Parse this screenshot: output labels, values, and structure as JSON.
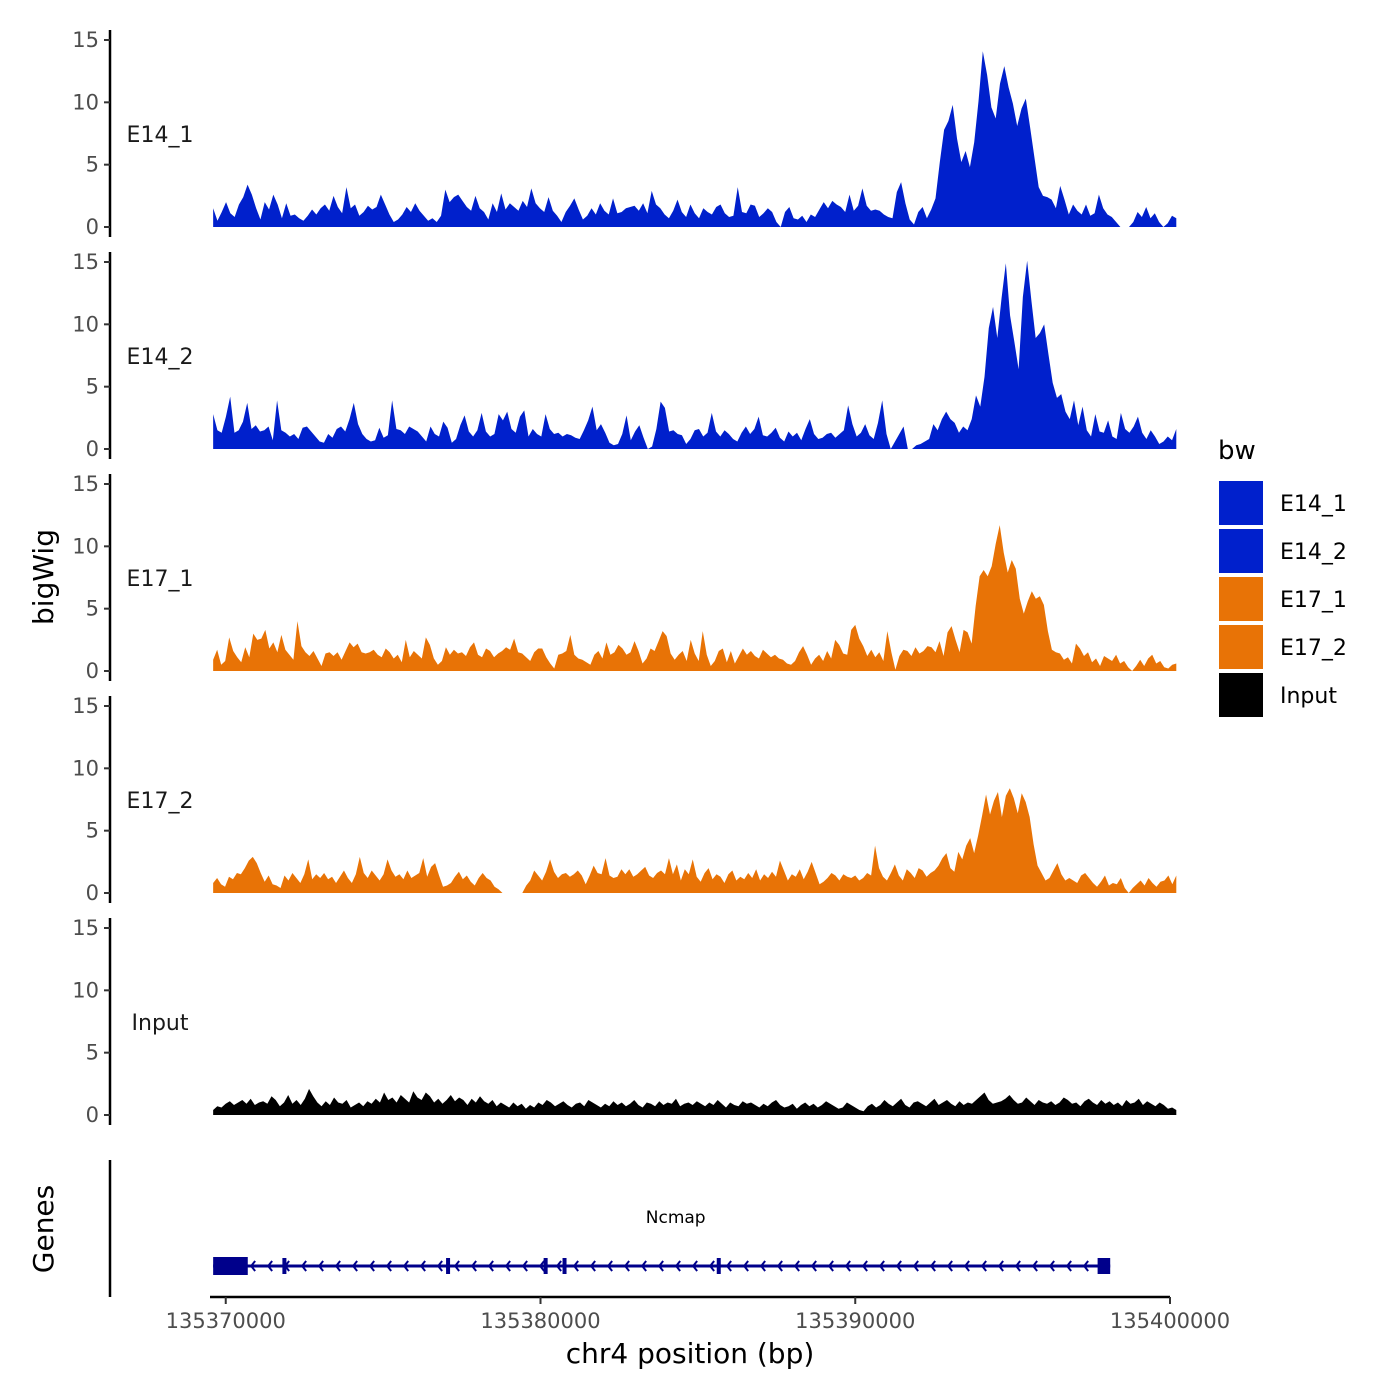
{
  "chart_data": {
    "type": "area",
    "ylabel": "bigWig",
    "xlabel": "chr4 position (bp)",
    "ylim": [
      0,
      15
    ],
    "y_ticks": [
      0,
      5,
      10,
      15
    ],
    "x_range": [
      135369500,
      135400000
    ],
    "x_ticks": [
      135370000,
      135380000,
      135390000,
      135400000
    ],
    "x_tick_labels": [
      "135370000",
      "135380000",
      "135390000",
      "135400000"
    ],
    "data_start": 135369600,
    "data_end": 135400200,
    "legend": {
      "title": "bw",
      "entries": [
        {
          "label": "E14_1",
          "color": "#0020CC"
        },
        {
          "label": "E14_2",
          "color": "#0020CC"
        },
        {
          "label": "E17_1",
          "color": "#E87306"
        },
        {
          "label": "E17_2",
          "color": "#E87306"
        },
        {
          "label": "Input",
          "color": "#000000"
        }
      ]
    },
    "tracks": [
      {
        "name": "E14_1",
        "color": "#0020CC",
        "values": [
          1.5,
          0.5,
          1.2,
          2.0,
          1.1,
          0.8,
          1.8,
          2.4,
          3.4,
          2.6,
          1.5,
          0.6,
          2.0,
          1.4,
          2.6,
          1.8,
          0.7,
          1.9,
          0.9,
          1.0,
          0.7,
          0.5,
          0.9,
          1.4,
          1.0,
          1.5,
          1.8,
          1.3,
          2.5,
          1.6,
          1.1,
          3.2,
          1.5,
          1.8,
          0.9,
          1.2,
          1.7,
          1.4,
          1.6,
          2.6,
          1.8,
          1.0,
          0.4,
          0.6,
          1.0,
          1.6,
          1.2,
          1.9,
          1.3,
          0.9,
          0.5,
          0.7,
          0.4,
          0.9,
          3.0,
          2.0,
          2.4,
          2.6,
          2.1,
          1.6,
          1.3,
          2.5,
          1.5,
          1.2,
          0.6,
          1.9,
          1.2,
          2.7,
          1.4,
          1.9,
          1.6,
          1.3,
          2.1,
          1.6,
          3.1,
          1.9,
          1.5,
          1.2,
          2.4,
          1.3,
          0.9,
          0.4,
          1.2,
          1.7,
          2.3,
          1.4,
          0.6,
          0.9,
          1.5,
          1.0,
          1.9,
          1.3,
          1.0,
          2.3,
          1.1,
          1.2,
          1.5,
          1.6,
          1.7,
          1.3,
          1.9,
          1.1,
          2.9,
          1.8,
          1.5,
          1.0,
          0.7,
          1.3,
          2.2,
          1.2,
          0.8,
          1.8,
          1.1,
          0.7,
          1.5,
          1.2,
          1.0,
          1.6,
          1.8,
          1.1,
          0.8,
          0.9,
          3.2,
          1.2,
          1.1,
          1.8,
          1.7,
          0.8,
          1.1,
          1.5,
          1.2,
          0.4,
          0.0,
          1.2,
          1.6,
          0.7,
          0.6,
          0.9,
          0.4,
          1.0,
          0.8,
          1.4,
          2.0,
          1.5,
          2.1,
          1.8,
          1.6,
          1.2,
          2.6,
          1.3,
          1.7,
          3.1,
          1.7,
          1.3,
          1.4,
          1.3,
          1.0,
          0.8,
          0.7,
          2.8,
          3.6,
          1.9,
          0.6,
          0.2,
          1.2,
          1.6,
          0.7,
          1.4,
          2.3,
          5.2,
          7.8,
          8.5,
          9.8,
          7.1,
          5.2,
          6.1,
          4.8,
          6.8,
          10.1,
          14.1,
          12.2,
          9.6,
          8.7,
          11.5,
          12.9,
          11.2,
          9.9,
          8.1,
          9.5,
          10.3,
          8.0,
          5.6,
          3.2,
          2.5,
          2.4,
          2.2,
          1.5,
          3.3,
          2.2,
          1.0,
          1.8,
          1.3,
          1.0,
          1.8,
          0.9,
          1.1,
          2.6,
          1.5,
          1.0,
          0.8,
          0.4,
          0.0,
          0.0,
          0.0,
          0.4,
          1.2,
          0.8,
          1.6,
          0.7,
          1.1,
          0.4,
          0.0,
          0.3,
          0.9,
          0.7
        ]
      },
      {
        "name": "E14_2",
        "color": "#0020CC",
        "values": [
          2.8,
          1.5,
          1.3,
          2.6,
          4.2,
          1.3,
          1.5,
          2.2,
          3.7,
          1.6,
          1.9,
          1.4,
          1.5,
          1.8,
          0.7,
          3.9,
          1.5,
          1.3,
          1.0,
          1.2,
          0.8,
          1.7,
          1.8,
          1.4,
          1.0,
          0.6,
          0.5,
          1.2,
          0.9,
          1.6,
          1.8,
          1.4,
          2.4,
          3.7,
          2.0,
          1.2,
          0.8,
          0.6,
          0.7,
          1.7,
          0.9,
          1.1,
          3.9,
          1.6,
          1.5,
          1.2,
          1.8,
          1.6,
          1.4,
          1.0,
          0.6,
          1.8,
          1.2,
          1.0,
          2.2,
          1.7,
          0.5,
          0.8,
          1.9,
          2.7,
          1.4,
          1.0,
          1.5,
          2.9,
          1.4,
          1.0,
          1.2,
          2.8,
          2.3,
          3.0,
          1.6,
          1.3,
          2.6,
          3.1,
          1.0,
          1.6,
          1.2,
          1.0,
          2.8,
          1.6,
          1.2,
          1.3,
          1.0,
          1.2,
          1.1,
          0.9,
          0.8,
          1.5,
          2.3,
          3.4,
          1.5,
          2.0,
          1.3,
          0.5,
          0.3,
          0.4,
          1.2,
          2.7,
          0.7,
          1.4,
          1.9,
          0.9,
          0.0,
          0.2,
          1.6,
          3.8,
          3.3,
          1.4,
          1.5,
          1.2,
          1.1,
          0.4,
          0.8,
          1.5,
          1.6,
          1.0,
          1.3,
          2.9,
          1.4,
          1.0,
          1.5,
          1.2,
          0.8,
          0.6,
          1.3,
          1.8,
          1.2,
          1.6,
          2.6,
          1.1,
          1.0,
          1.3,
          1.7,
          0.9,
          0.6,
          1.4,
          1.0,
          1.3,
          0.7,
          1.6,
          2.4,
          1.2,
          0.8,
          0.9,
          1.2,
          1.3,
          0.9,
          1.2,
          1.5,
          3.5,
          2.0,
          1.0,
          1.3,
          2.0,
          1.1,
          0.8,
          2.1,
          3.9,
          1.2,
          0.0,
          0.6,
          1.2,
          1.8,
          0.0,
          0.0,
          0.3,
          0.4,
          0.6,
          0.8,
          2.0,
          1.5,
          2.4,
          3.0,
          2.4,
          2.1,
          1.3,
          1.8,
          1.5,
          2.4,
          4.3,
          3.4,
          5.8,
          9.7,
          11.4,
          8.9,
          12.1,
          14.9,
          10.7,
          8.6,
          6.4,
          12.2,
          15.1,
          11.9,
          8.9,
          9.3,
          10.0,
          7.6,
          5.3,
          4.1,
          4.4,
          3.0,
          2.4,
          3.9,
          1.9,
          3.4,
          1.5,
          1.0,
          2.8,
          1.4,
          1.3,
          2.3,
          1.0,
          0.8,
          2.9,
          1.6,
          1.3,
          1.8,
          2.6,
          1.3,
          0.8,
          1.5,
          1.0,
          0.4,
          0.6,
          1.0,
          0.7,
          1.6
        ]
      },
      {
        "name": "E17_1",
        "color": "#E87306",
        "values": [
          0.9,
          1.7,
          0.5,
          0.8,
          2.7,
          1.6,
          1.1,
          0.7,
          1.9,
          1.1,
          3.0,
          2.5,
          2.6,
          3.3,
          1.8,
          2.3,
          1.5,
          2.9,
          1.7,
          1.3,
          0.9,
          4.0,
          2.0,
          1.5,
          1.2,
          1.6,
          1.0,
          0.4,
          1.4,
          1.5,
          1.2,
          1.5,
          0.9,
          1.6,
          2.3,
          1.9,
          2.2,
          1.5,
          1.4,
          1.5,
          1.7,
          1.3,
          1.1,
          1.8,
          1.5,
          1.0,
          1.3,
          0.7,
          2.5,
          1.1,
          1.6,
          1.3,
          1.0,
          2.7,
          2.1,
          1.0,
          0.5,
          0.8,
          1.9,
          1.3,
          1.7,
          1.4,
          1.5,
          1.2,
          1.9,
          2.3,
          1.3,
          1.1,
          1.8,
          1.6,
          1.1,
          1.4,
          1.6,
          1.9,
          1.7,
          2.6,
          1.5,
          1.4,
          1.1,
          0.8,
          1.5,
          1.8,
          1.8,
          1.1,
          0.6,
          0.2,
          1.3,
          1.4,
          1.6,
          2.9,
          1.3,
          1.0,
          0.9,
          0.7,
          0.5,
          1.3,
          1.6,
          1.0,
          2.3,
          1.3,
          1.5,
          2.1,
          1.8,
          1.3,
          1.5,
          2.4,
          1.6,
          0.6,
          1.0,
          1.8,
          1.6,
          2.4,
          3.2,
          2.8,
          1.4,
          0.9,
          1.3,
          1.6,
          0.8,
          2.5,
          1.4,
          0.8,
          3.2,
          1.3,
          0.4,
          0.8,
          1.6,
          1.8,
          0.7,
          1.6,
          0.6,
          1.2,
          1.8,
          1.3,
          1.6,
          1.2,
          1.0,
          1.7,
          1.4,
          1.1,
          1.3,
          1.0,
          0.9,
          0.6,
          0.5,
          0.8,
          1.5,
          2.0,
          1.3,
          0.5,
          1.0,
          1.3,
          0.8,
          1.6,
          1.0,
          2.5,
          2.1,
          1.4,
          1.3,
          3.3,
          3.7,
          2.6,
          2.0,
          1.2,
          1.7,
          1.1,
          1.5,
          0.8,
          3.2,
          1.5,
          0.1,
          1.2,
          1.7,
          1.6,
          1.2,
          1.9,
          1.4,
          1.6,
          2.0,
          1.9,
          1.5,
          2.4,
          1.2,
          3.1,
          3.6,
          2.5,
          1.5,
          3.3,
          3.1,
          2.2,
          5.2,
          7.6,
          8.1,
          7.6,
          8.4,
          10.2,
          11.7,
          9.5,
          7.9,
          8.9,
          8.2,
          5.8,
          4.6,
          5.6,
          6.4,
          5.8,
          6.0,
          5.3,
          3.2,
          1.7,
          1.5,
          1.4,
          0.9,
          1.1,
          0.6,
          2.2,
          1.8,
          1.2,
          1.5,
          0.7,
          1.0,
          0.4,
          1.2,
          1.0,
          0.8,
          1.3,
          0.6,
          0.8,
          0.3,
          0.0,
          0.4,
          0.9,
          0.4,
          1.0,
          1.3,
          0.6,
          0.8,
          0.3,
          0.2,
          0.5,
          0.6
        ]
      },
      {
        "name": "E17_2",
        "color": "#E87306",
        "values": [
          0.8,
          1.2,
          0.7,
          0.5,
          1.3,
          1.1,
          1.6,
          1.5,
          2.0,
          2.6,
          2.9,
          2.4,
          1.6,
          0.9,
          1.4,
          0.7,
          0.6,
          0.4,
          1.4,
          1.0,
          1.6,
          1.2,
          0.8,
          1.5,
          2.7,
          1.1,
          1.5,
          1.2,
          1.6,
          1.1,
          1.3,
          0.8,
          1.3,
          1.8,
          1.2,
          0.8,
          1.5,
          2.9,
          1.6,
          1.2,
          1.8,
          1.4,
          1.0,
          1.5,
          2.7,
          1.8,
          1.3,
          1.5,
          1.1,
          1.8,
          1.2,
          1.4,
          1.6,
          2.8,
          1.3,
          2.1,
          2.4,
          1.4,
          0.5,
          0.6,
          0.8,
          1.3,
          1.7,
          1.1,
          1.4,
          0.9,
          0.6,
          1.2,
          1.6,
          1.2,
          1.0,
          0.5,
          0.3,
          0.0,
          0.0,
          0.0,
          0.0,
          0.0,
          0.0,
          0.6,
          1.0,
          1.8,
          1.4,
          1.0,
          1.7,
          2.7,
          1.7,
          1.2,
          1.5,
          1.6,
          1.3,
          1.5,
          1.8,
          1.4,
          0.7,
          1.4,
          2.2,
          1.6,
          1.5,
          2.8,
          1.4,
          1.2,
          1.3,
          1.9,
          1.5,
          1.9,
          1.3,
          1.5,
          1.8,
          2.1,
          1.4,
          1.2,
          1.6,
          1.8,
          1.5,
          2.8,
          1.5,
          2.3,
          1.0,
          1.9,
          1.5,
          2.7,
          1.3,
          0.9,
          1.6,
          2.0,
          1.1,
          1.5,
          1.3,
          0.8,
          1.5,
          1.8,
          1.0,
          1.3,
          1.1,
          1.6,
          1.2,
          1.9,
          1.0,
          1.5,
          1.2,
          1.7,
          1.3,
          2.6,
          1.8,
          1.0,
          1.5,
          1.3,
          1.9,
          1.1,
          1.7,
          2.5,
          1.6,
          0.7,
          0.9,
          1.2,
          1.6,
          1.4,
          1.0,
          1.5,
          1.3,
          1.2,
          1.4,
          1.0,
          1.2,
          1.6,
          1.4,
          3.8,
          2.0,
          1.3,
          1.0,
          1.6,
          2.3,
          1.4,
          1.0,
          1.9,
          1.6,
          1.2,
          2.0,
          1.8,
          1.3,
          1.6,
          1.8,
          2.2,
          2.8,
          3.2,
          2.0,
          1.7,
          3.3,
          2.7,
          3.8,
          4.4,
          3.2,
          4.6,
          6.2,
          7.9,
          6.3,
          7.4,
          8.1,
          6.1,
          7.8,
          8.4,
          7.6,
          6.4,
          8.0,
          7.3,
          6.1,
          3.9,
          2.2,
          1.6,
          1.0,
          1.2,
          1.8,
          2.4,
          1.5,
          1.0,
          1.2,
          1.0,
          0.8,
          1.4,
          1.6,
          1.2,
          0.8,
          0.5,
          0.9,
          1.4,
          0.6,
          0.8,
          0.7,
          1.2,
          0.4,
          0.0,
          0.4,
          0.7,
          1.0,
          0.6,
          1.2,
          0.8,
          0.5,
          0.9,
          1.0,
          1.4,
          0.7,
          1.4
        ]
      },
      {
        "name": "Input",
        "color": "#000000",
        "values": [
          0.4,
          0.7,
          0.6,
          0.9,
          1.1,
          0.8,
          1.0,
          1.2,
          0.9,
          1.3,
          0.8,
          1.0,
          1.1,
          0.9,
          1.5,
          1.2,
          0.7,
          1.0,
          1.6,
          0.9,
          1.2,
          0.8,
          1.3,
          2.1,
          1.5,
          1.0,
          0.7,
          1.1,
          0.8,
          1.4,
          1.0,
          0.9,
          1.2,
          0.6,
          0.8,
          1.0,
          0.7,
          1.1,
          0.9,
          1.3,
          1.0,
          1.8,
          1.2,
          1.4,
          1.0,
          1.6,
          1.3,
          1.0,
          1.9,
          1.4,
          1.2,
          1.8,
          1.5,
          1.0,
          1.3,
          0.9,
          1.2,
          1.6,
          1.1,
          1.4,
          1.2,
          0.8,
          1.3,
          1.0,
          1.5,
          1.1,
          0.9,
          1.2,
          0.7,
          1.0,
          0.8,
          0.6,
          1.0,
          0.7,
          0.9,
          0.5,
          0.8,
          0.6,
          1.0,
          0.8,
          1.2,
          1.0,
          0.7,
          0.9,
          1.1,
          0.8,
          0.6,
          0.9,
          1.0,
          0.7,
          1.2,
          1.0,
          0.8,
          0.6,
          0.9,
          0.7,
          1.1,
          0.8,
          1.0,
          0.7,
          0.9,
          1.2,
          0.8,
          0.6,
          1.0,
          0.9,
          0.7,
          1.1,
          0.8,
          1.0,
          0.9,
          1.3,
          0.7,
          0.9,
          1.0,
          0.8,
          1.1,
          0.9,
          0.7,
          1.0,
          0.8,
          1.2,
          0.9,
          0.6,
          1.0,
          0.8,
          0.7,
          1.1,
          0.9,
          1.0,
          0.8,
          0.6,
          0.9,
          0.7,
          1.0,
          1.2,
          0.8,
          0.6,
          0.7,
          0.9,
          0.5,
          0.8,
          1.0,
          0.7,
          0.9,
          0.6,
          0.8,
          1.1,
          0.9,
          0.7,
          0.5,
          0.6,
          1.0,
          0.8,
          0.6,
          0.4,
          0.3,
          0.7,
          0.9,
          0.6,
          0.8,
          1.2,
          0.9,
          0.7,
          1.0,
          1.3,
          0.8,
          0.6,
          1.0,
          1.1,
          0.9,
          0.7,
          1.0,
          1.3,
          0.8,
          1.0,
          1.2,
          0.9,
          0.7,
          1.1,
          0.8,
          1.0,
          0.9,
          1.2,
          1.5,
          1.8,
          1.2,
          0.9,
          1.0,
          1.1,
          1.3,
          1.6,
          1.2,
          0.9,
          1.0,
          1.4,
          1.1,
          0.8,
          1.2,
          1.0,
          0.9,
          1.1,
          0.8,
          1.0,
          1.4,
          1.2,
          0.9,
          1.0,
          0.7,
          1.1,
          1.3,
          1.0,
          0.8,
          1.2,
          0.9,
          1.1,
          0.8,
          1.0,
          0.7,
          1.2,
          0.9,
          1.0,
          1.3,
          0.8,
          1.1,
          0.9,
          0.7,
          1.0,
          0.8,
          0.5,
          0.6,
          0.4
        ]
      }
    ],
    "genes": {
      "label": "Genes",
      "transcripts": [
        {
          "name": "Ncmap",
          "start": 135369600,
          "end": 135398100,
          "strand": "-",
          "color": "#00008B",
          "exons": [
            {
              "start": 135369600,
              "end": 135370700
            },
            {
              "start": 135371800,
              "end": 135371850
            },
            {
              "start": 135377000,
              "end": 135377050
            },
            {
              "start": 135380100,
              "end": 135380200
            },
            {
              "start": 135380700,
              "end": 135380800
            },
            {
              "start": 135385600,
              "end": 135385650
            },
            {
              "start": 135397700,
              "end": 135398100
            }
          ]
        }
      ]
    }
  }
}
